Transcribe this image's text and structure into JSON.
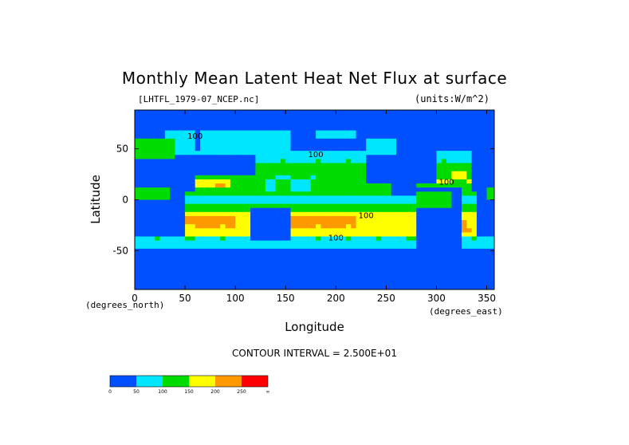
{
  "chart_data": {
    "type": "heatmap",
    "title": "Monthly Mean Latent Heat Net Flux at surface",
    "file_label": "[LHTFL_1979-07_NCEP.nc]",
    "units_label": "(units:W/m^2)",
    "xlabel": "Longitude",
    "ylabel": "Latitude",
    "x_units": "(degrees_east)",
    "y_units": "(degrees_north)",
    "xlim": [
      0,
      357.5
    ],
    "ylim": [
      -88,
      88
    ],
    "x_ticks": [
      0,
      50,
      100,
      150,
      200,
      250,
      300,
      350
    ],
    "y_ticks": [
      50,
      0,
      -50
    ],
    "contour_interval_text": "CONTOUR INTERVAL = 2.500E+01",
    "contour_labels": [
      "100",
      "100",
      "100",
      "100",
      "100"
    ],
    "colorbar": {
      "levels": [
        "0",
        "50",
        "100",
        "150",
        "200",
        "250",
        "∞"
      ],
      "colors": [
        "#0050ff",
        "#00e6ff",
        "#00dc00",
        "#ffff00",
        "#ff9900",
        "#ff0000"
      ]
    }
  }
}
